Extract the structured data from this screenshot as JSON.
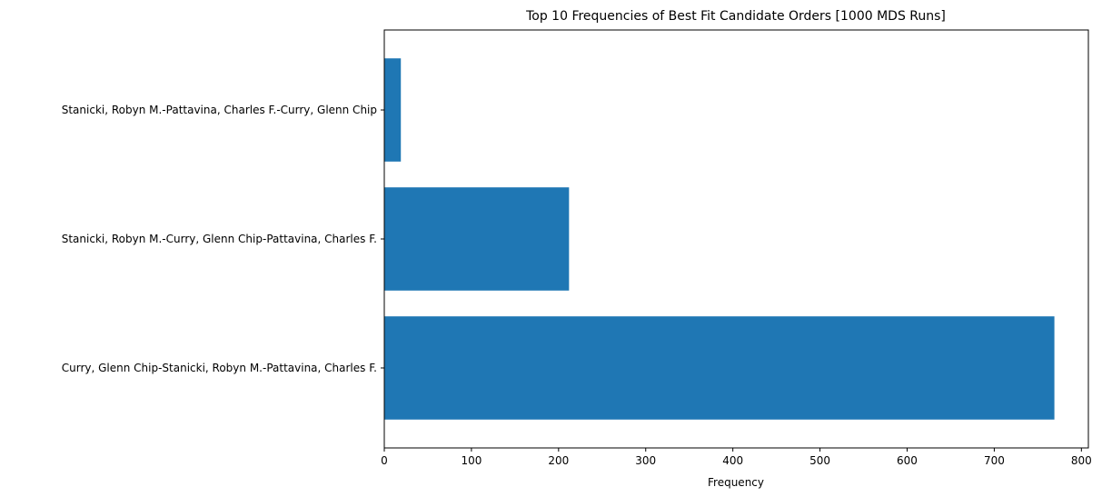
{
  "chart_data": {
    "type": "bar",
    "orientation": "horizontal",
    "title": "Top 10 Frequencies of Best Fit Candidate Orders [1000 MDS Runs]",
    "xlabel": "Frequency",
    "ylabel": "",
    "categories": [
      "Curry, Glenn Chip-Stanicki, Robyn M.-Pattavina, Charles F.",
      "Stanicki, Robyn M.-Curry, Glenn Chip-Pattavina, Charles F.",
      "Stanicki, Robyn M.-Pattavina, Charles F.-Curry, Glenn Chip"
    ],
    "values": [
      769,
      212,
      19
    ],
    "xlim": [
      0,
      808
    ],
    "xticks": [
      0,
      100,
      200,
      300,
      400,
      500,
      600,
      700,
      800
    ],
    "bar_color": "#1f77b4",
    "grid": false,
    "legend": "none"
  }
}
